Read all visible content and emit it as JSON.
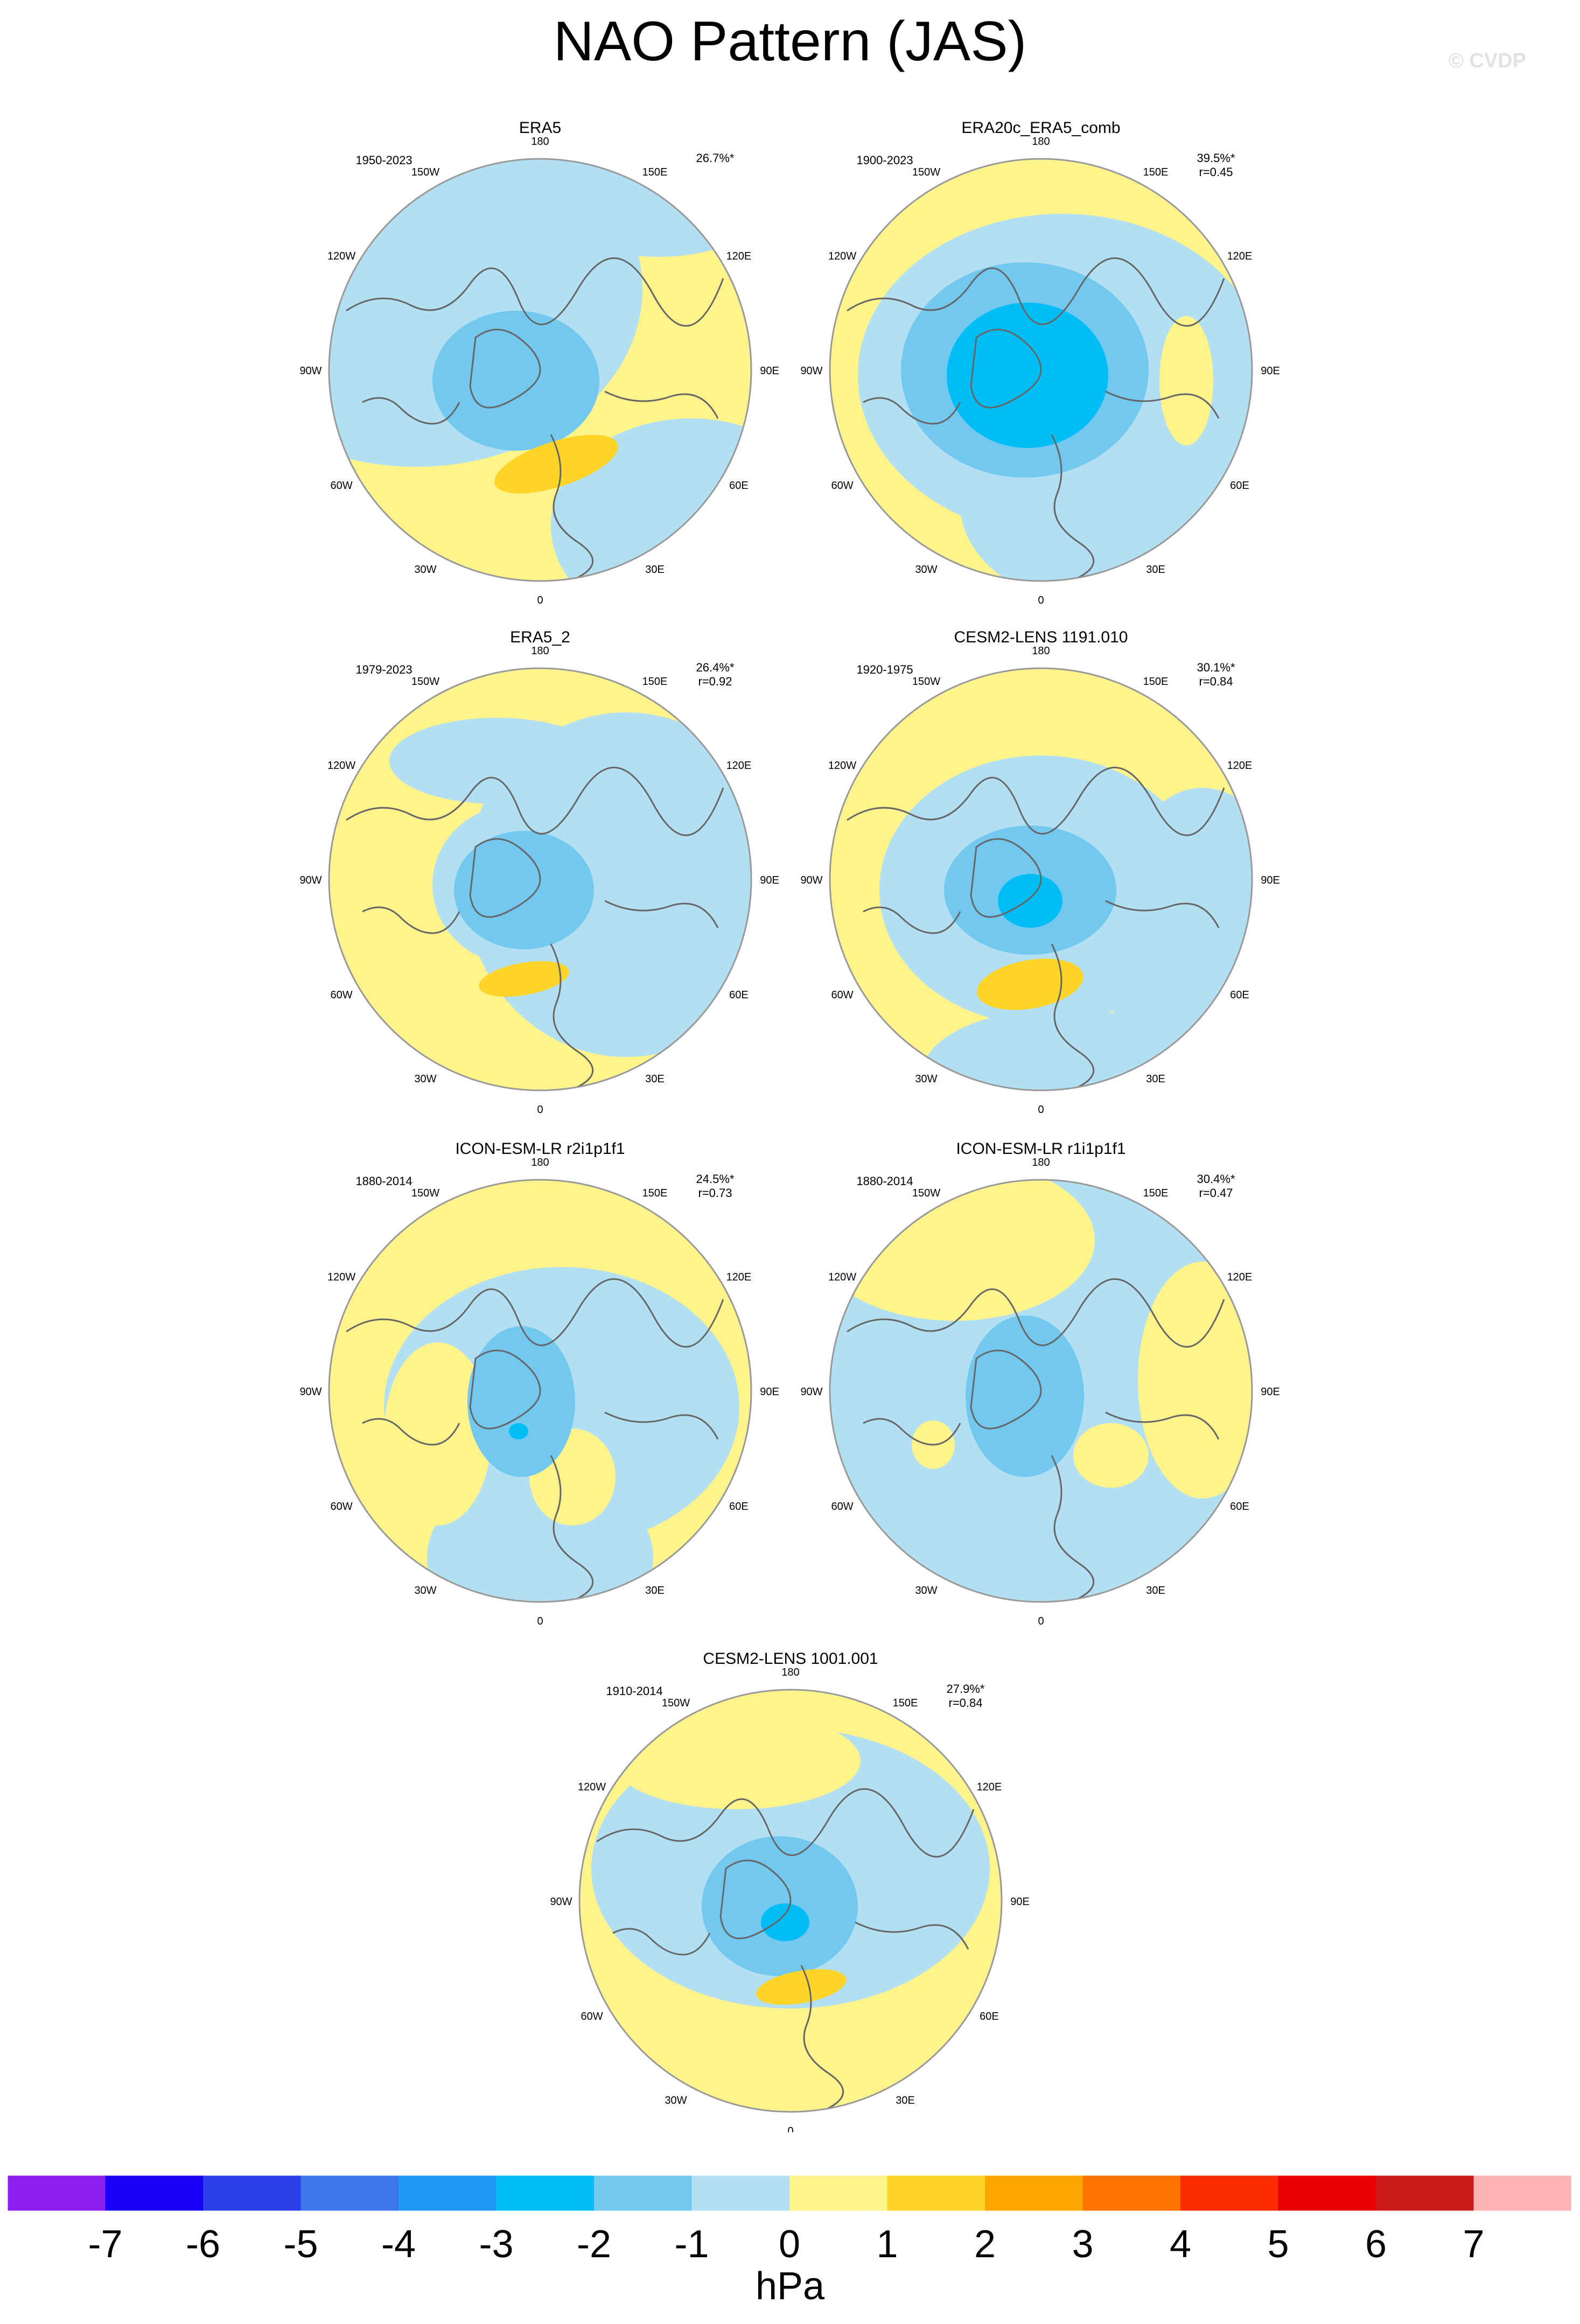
{
  "title": "NAO Pattern (JAS)",
  "watermark": "© CVDP",
  "units": "hPa",
  "lon_labels": [
    "180",
    "150E",
    "120E",
    "90E",
    "60E",
    "30E",
    "0",
    "30W",
    "60W",
    "90W",
    "120W",
    "150W"
  ],
  "colorbar": {
    "tick_labels": [
      "-7",
      "-6",
      "-5",
      "-4",
      "-3",
      "-2",
      "-1",
      "0",
      "1",
      "2",
      "3",
      "4",
      "5",
      "6",
      "7"
    ],
    "colors": [
      "#8c1ff0",
      "#1a00f7",
      "#2b3ee8",
      "#3b76ea",
      "#1e98f5",
      "#00bdf6",
      "#73c8f0",
      "#b3dff2",
      "#fff38c",
      "#fed428",
      "#fea600",
      "#fe7400",
      "#fb2b00",
      "#e80000",
      "#cb1a1a",
      "#fdb3b3"
    ]
  },
  "panels": [
    {
      "name": "ERA5",
      "period": "1950-2023",
      "stat": "26.7%*",
      "corr": ""
    },
    {
      "name": "ERA20c_ERA5_comb",
      "period": "1900-2023",
      "stat": "39.5%*",
      "corr": "r=0.45"
    },
    {
      "name": "ERA5_2",
      "period": "1979-2023",
      "stat": "26.4%*",
      "corr": "r=0.92"
    },
    {
      "name": "CESM2-LENS 1191.010",
      "period": "1920-1975",
      "stat": "30.1%*",
      "corr": "r=0.84"
    },
    {
      "name": "ICON-ESM-LR r2i1p1f1",
      "period": "1880-2014",
      "stat": "24.5%*",
      "corr": "r=0.73"
    },
    {
      "name": "ICON-ESM-LR r1i1p1f1",
      "period": "1880-2014",
      "stat": "30.4%*",
      "corr": "r=0.47"
    },
    {
      "name": "CESM2-LENS 1001.001",
      "period": "1910-2014",
      "stat": "27.9%*",
      "corr": "r=0.84"
    }
  ]
}
